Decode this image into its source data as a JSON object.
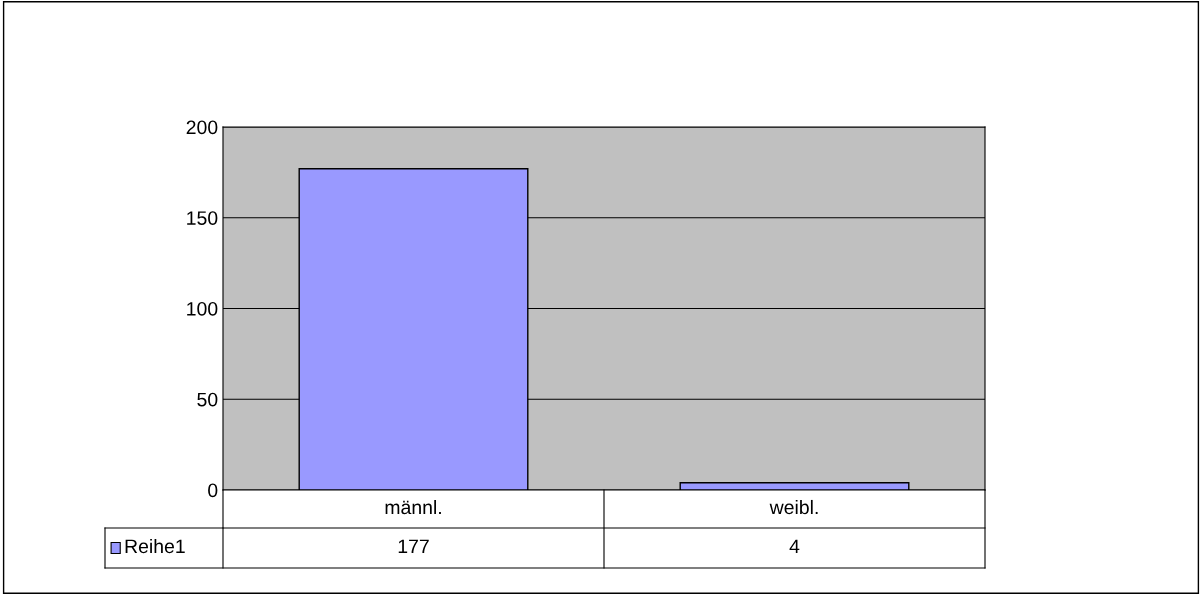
{
  "chart_data": {
    "type": "bar",
    "categories": [
      "männl.",
      "weibl."
    ],
    "series": [
      {
        "name": "Reihe1",
        "color": "#9999ff",
        "values": [
          177,
          4
        ]
      }
    ],
    "ylim": [
      0,
      200
    ],
    "yticks": [
      0,
      50,
      100,
      150,
      200
    ],
    "grid": "y",
    "data_labels": true,
    "legend": "bottom"
  }
}
